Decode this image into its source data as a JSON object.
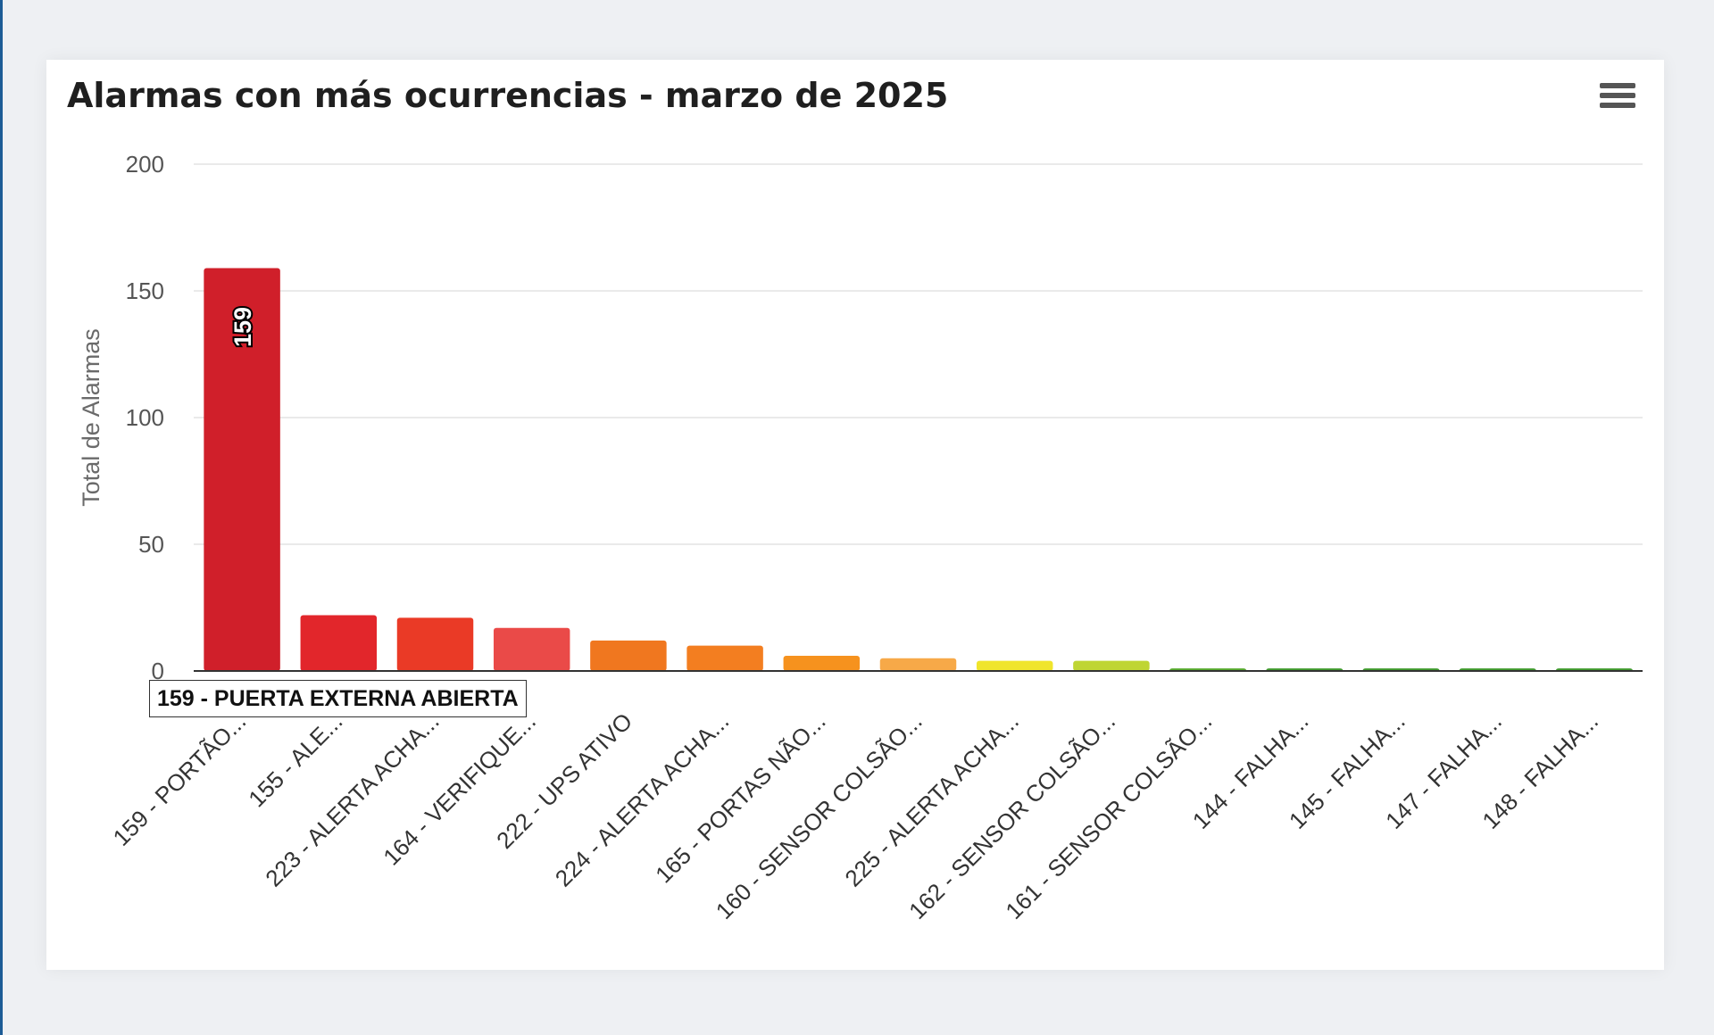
{
  "chart_data": {
    "type": "bar",
    "title": "Alarmas con más ocurrencias - marzo de 2025",
    "xlabel": "",
    "ylabel": "Total de Alarmas",
    "ylim": [
      0,
      200
    ],
    "yticks": [
      "0",
      "50",
      "100",
      "150",
      "200"
    ],
    "grid": true,
    "legend": "none",
    "categories": [
      "159 - PORTÃO...",
      "155 - ALE...",
      "223 - ALERTA ACHA...",
      "164 - VERIFIQUE...",
      "222 - UPS ATIVO",
      "224 - ALERTA ACHA...",
      "165 - PORTAS NÃO...",
      "160 - SENSOR COLSÃO...",
      "225 - ALERTA ACHA...",
      "162 - SENSOR COLSÃO...",
      "161 - SENSOR COLSÃO...",
      "144 - FALHA...",
      "145 - FALHA...",
      "147 - FALHA...",
      "148 - FALHA..."
    ],
    "values": [
      159,
      22,
      21,
      17,
      12,
      10,
      6,
      5,
      4,
      4,
      1,
      1,
      1,
      1,
      1
    ],
    "colors": [
      "#d01f2a",
      "#e2262b",
      "#ea3a26",
      "#ea4a48",
      "#f0771f",
      "#f37e20",
      "#f6921e",
      "#f7a948",
      "#f0e52c",
      "#bfd534",
      "#56a92d",
      "#3f9a2d",
      "#3f9a2d",
      "#3f9a2d",
      "#3f9a2d"
    ],
    "data_labels": [
      "159"
    ]
  },
  "tooltip": {
    "text": "159 - PUERTA EXTERNA ABIERTA"
  },
  "menu_icon": "hamburger-menu-icon"
}
